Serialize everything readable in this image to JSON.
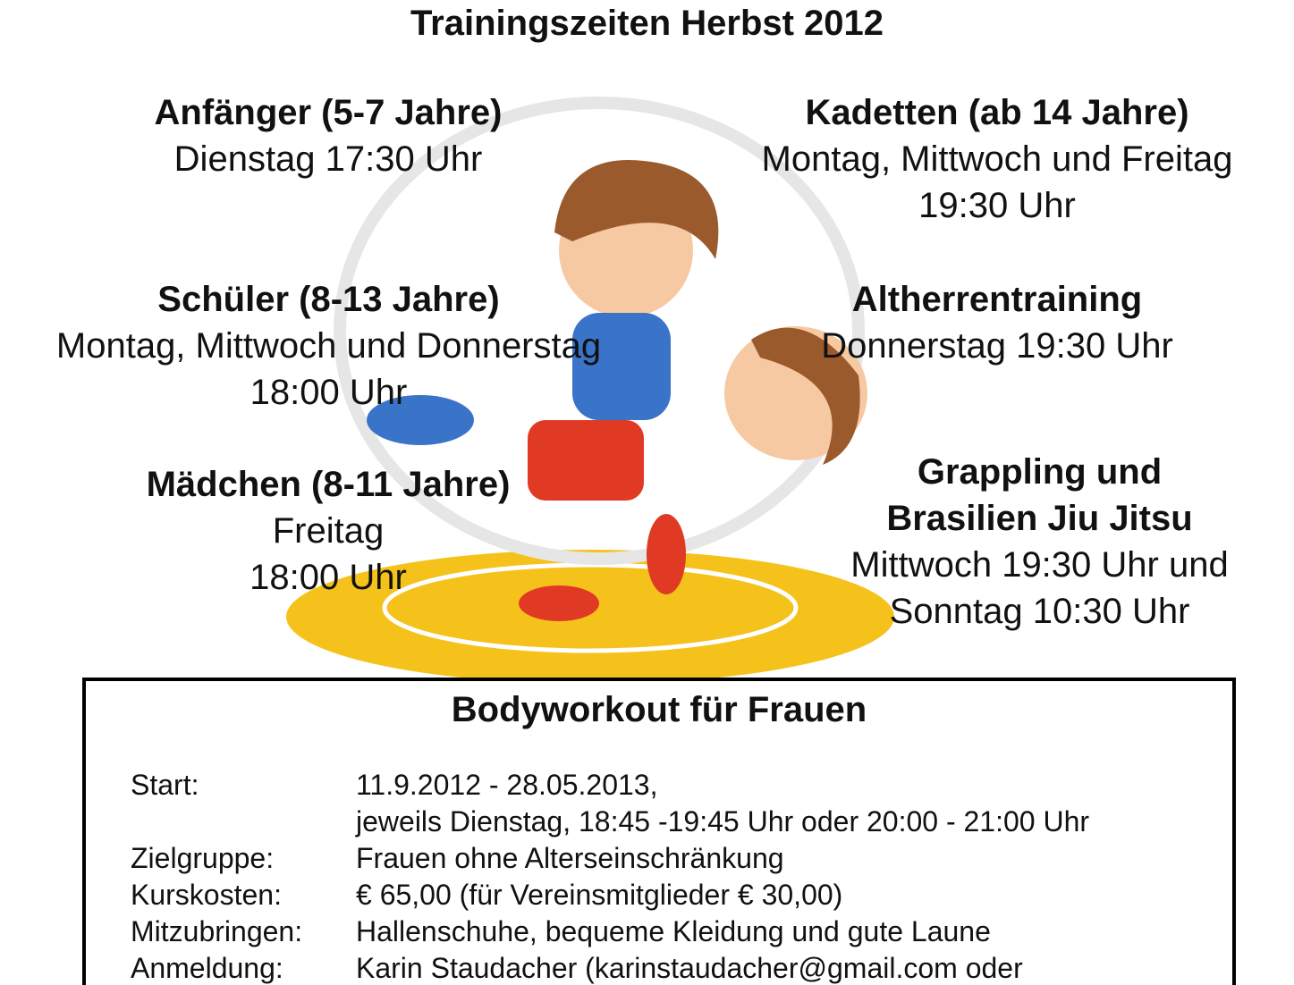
{
  "title": "Trainingszeiten Herbst 2012",
  "groups": [
    {
      "heading": "Anfänger (5-7 Jahre)",
      "lines": [
        "Dienstag 17:30 Uhr"
      ]
    },
    {
      "heading": "Kadetten (ab 14 Jahre)",
      "lines": [
        "Montag, Mittwoch und Freitag",
        "19:30 Uhr"
      ]
    },
    {
      "heading": "Schüler (8-13 Jahre)",
      "lines": [
        "Montag, Mittwoch und Donnerstag",
        "18:00 Uhr"
      ]
    },
    {
      "heading": "Altherrentraining",
      "lines": [
        "Donnerstag 19:30 Uhr"
      ]
    },
    {
      "heading": "Mädchen (8-11 Jahre)",
      "lines": [
        "Freitag",
        "18:00 Uhr"
      ]
    },
    {
      "heading": "Grappling und",
      "heading2": "Brasilien Jiu Jitsu",
      "lines": [
        "Mittwoch 19:30 Uhr und",
        "Sonntag 10:30 Uhr"
      ]
    }
  ],
  "illustration": "wrestling-kids-cartoon",
  "bodyworkout": {
    "title": "Bodyworkout für Frauen",
    "rows": [
      {
        "label": "Start:",
        "value": "11.9.2012 - 28.05.2013,"
      },
      {
        "label": "",
        "value": "jeweils Dienstag, 18:45 -19:45 Uhr oder 20:00 - 21:00 Uhr"
      },
      {
        "label": "Zielgruppe:",
        "value": "Frauen ohne Alterseinschränkung"
      },
      {
        "label": "Kurskosten:",
        "value": "€ 65,00 (für Vereinsmitglieder € 30,00)"
      },
      {
        "label": "Mitzubringen:",
        "value": "Hallenschuhe, bequeme Kleidung und gute Laune"
      },
      {
        "label": "Anmeldung:",
        "value": "Karin Staudacher (karinstaudacher@gmail.com oder"
      }
    ]
  }
}
